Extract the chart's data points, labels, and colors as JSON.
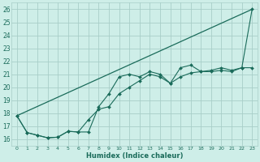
{
  "xlabel": "Humidex (Indice chaleur)",
  "background_color": "#ceeee8",
  "grid_color": "#a8cec8",
  "line_color": "#1a6b5a",
  "xlim": [
    -0.5,
    23.5
  ],
  "ylim": [
    15.5,
    26.5
  ],
  "xticks": [
    0,
    1,
    2,
    3,
    4,
    5,
    6,
    7,
    8,
    9,
    10,
    11,
    12,
    13,
    14,
    15,
    16,
    17,
    18,
    19,
    20,
    21,
    22,
    23
  ],
  "yticks": [
    16,
    17,
    18,
    19,
    20,
    21,
    22,
    23,
    24,
    25,
    26
  ],
  "line1_x": [
    0,
    23
  ],
  "line1_y": [
    17.8,
    26.0
  ],
  "line2_x": [
    0,
    1,
    2,
    3,
    4,
    5,
    6,
    7,
    8,
    9,
    10,
    11,
    12,
    13,
    14,
    15,
    16,
    17,
    18,
    19,
    20,
    21,
    22,
    23
  ],
  "line2_y": [
    17.8,
    16.5,
    16.3,
    16.1,
    16.15,
    16.6,
    16.55,
    16.55,
    18.5,
    19.5,
    20.8,
    21.0,
    20.8,
    21.2,
    21.0,
    20.3,
    21.5,
    21.7,
    21.2,
    21.3,
    21.5,
    21.3,
    21.5,
    21.5
  ],
  "line3_x": [
    0,
    1,
    2,
    3,
    4,
    5,
    6,
    7,
    8,
    9,
    10,
    11,
    12,
    13,
    14,
    15,
    16,
    17,
    18,
    19,
    20,
    21,
    22,
    23
  ],
  "line3_y": [
    17.8,
    16.5,
    16.3,
    16.1,
    16.15,
    16.6,
    16.55,
    17.5,
    18.3,
    18.5,
    19.5,
    20.0,
    20.5,
    21.0,
    20.8,
    20.3,
    20.8,
    21.1,
    21.2,
    21.2,
    21.3,
    21.2,
    21.5,
    26.0
  ]
}
